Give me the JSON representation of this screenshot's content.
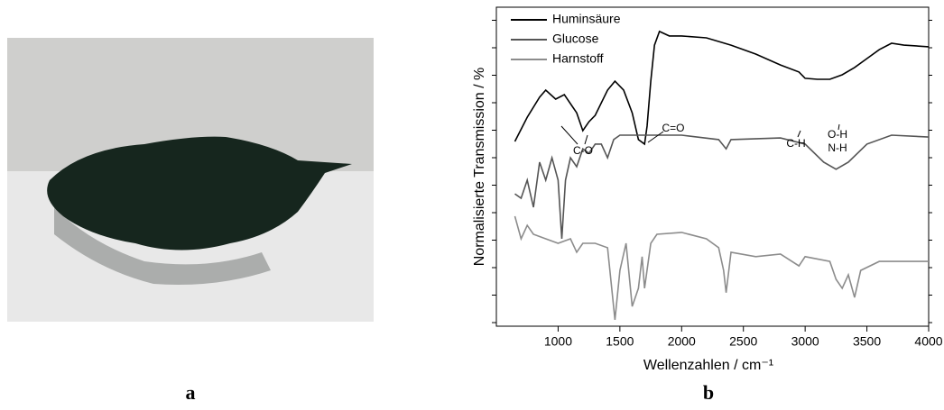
{
  "panel_labels": [
    "a",
    "b"
  ],
  "chart_data": {
    "type": "line",
    "x_label": "Wellenzahlen / cm⁻¹",
    "y_label": "Normalisierte Transmission / %",
    "xlim": [
      500,
      4000
    ],
    "xticks": [
      1000,
      1500,
      2000,
      2500,
      3000,
      3500,
      4000
    ],
    "ylim": [
      0,
      100
    ],
    "legend": "upper left",
    "annotations": [
      "C-O",
      "C=O",
      "C-H",
      "O-H",
      "N-H"
    ],
    "series": [
      {
        "name": "Huminsäure",
        "color": "#000000",
        "x": [
          650,
          750,
          850,
          900,
          980,
          1050,
          1150,
          1200,
          1250,
          1300,
          1400,
          1460,
          1530,
          1600,
          1650,
          1700,
          1720,
          1750,
          1780,
          1820,
          1900,
          2000,
          2200,
          2400,
          2600,
          2800,
          2950,
          3000,
          3100,
          3200,
          3300,
          3400,
          3500,
          3600,
          3700,
          3800,
          4000
        ],
        "values": [
          57.9,
          65.5,
          71.8,
          74.0,
          71.2,
          72.6,
          66.9,
          61.3,
          64.1,
          66.1,
          74.0,
          76.8,
          74.0,
          66.9,
          58.5,
          57.1,
          62.7,
          76.8,
          88.1,
          92.4,
          91.0,
          91.0,
          90.4,
          88.1,
          85.3,
          81.9,
          79.7,
          77.7,
          77.4,
          77.4,
          78.8,
          81.1,
          83.9,
          86.7,
          88.7,
          88.1,
          87.6
        ]
      },
      {
        "name": "Glucose",
        "color": "#555555",
        "x": [
          650,
          700,
          750,
          800,
          850,
          900,
          950,
          1000,
          1030,
          1060,
          1100,
          1150,
          1200,
          1250,
          1300,
          1350,
          1400,
          1450,
          1500,
          1700,
          2000,
          2300,
          2360,
          2400,
          2800,
          3000,
          3150,
          3250,
          3350,
          3500,
          3700,
          4000
        ],
        "values": [
          41.5,
          40.1,
          45.8,
          37.3,
          51.4,
          45.8,
          52.8,
          45.8,
          27.4,
          45.8,
          52.8,
          50.0,
          55.6,
          54.2,
          57.1,
          57.1,
          52.8,
          58.5,
          59.9,
          59.9,
          59.9,
          58.5,
          55.6,
          58.5,
          59.0,
          57.1,
          51.4,
          49.2,
          51.4,
          57.1,
          59.9,
          59.3
        ]
      },
      {
        "name": "Harnstoff",
        "color": "#8c8c8c",
        "x": [
          650,
          700,
          750,
          800,
          900,
          1000,
          1100,
          1150,
          1200,
          1300,
          1400,
          1460,
          1500,
          1550,
          1600,
          1650,
          1680,
          1700,
          1750,
          1800,
          2000,
          2200,
          2300,
          2340,
          2360,
          2400,
          2600,
          2800,
          2950,
          3000,
          3200,
          3250,
          3300,
          3350,
          3400,
          3450,
          3600,
          4000
        ],
        "values": [
          34.5,
          27.4,
          31.6,
          28.8,
          27.4,
          26.0,
          27.4,
          23.2,
          26.0,
          26.0,
          24.6,
          2.0,
          17.5,
          26.0,
          6.2,
          11.9,
          21.8,
          11.9,
          26.0,
          28.8,
          29.4,
          27.4,
          24.6,
          17.5,
          10.5,
          23.2,
          21.8,
          22.6,
          18.9,
          21.8,
          20.3,
          14.7,
          11.9,
          16.1,
          9.0,
          17.5,
          20.3,
          20.3
        ]
      }
    ]
  }
}
